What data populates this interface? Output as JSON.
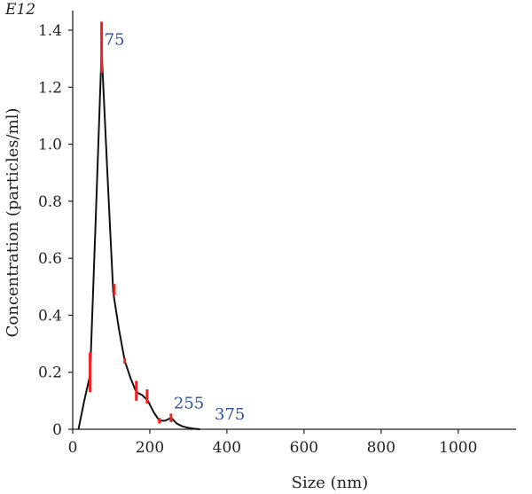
{
  "chart_data": {
    "type": "line",
    "title": "",
    "xlabel": "Size (nm)",
    "ylabel": "Concentration (particles/ml)",
    "y_multiplier_label": "E12",
    "xlim": [
      0,
      1150
    ],
    "ylim": [
      0,
      1.45
    ],
    "xticks": [
      0,
      200,
      400,
      600,
      800,
      1000
    ],
    "yticks": [
      0,
      0.2,
      0.4,
      0.6,
      0.8,
      1.0,
      1.2,
      1.4
    ],
    "ytick_labels": [
      "0",
      "0.2",
      "0.4",
      "0.6",
      "0.8",
      "1.0",
      "1.2",
      "1.4"
    ],
    "grid": false,
    "series": [
      {
        "color": "#111111",
        "x": [
          15,
          30,
          45,
          60,
          75,
          90,
          105,
          120,
          135,
          150,
          165,
          180,
          195,
          210,
          225,
          240,
          255,
          270,
          285,
          300,
          315,
          330
        ],
        "y": [
          0,
          0.1,
          0.19,
          0.75,
          1.33,
          0.9,
          0.48,
          0.35,
          0.24,
          0.18,
          0.13,
          0.12,
          0.1,
          0.06,
          0.03,
          0.03,
          0.04,
          0.02,
          0.01,
          0.005,
          0.002,
          0
        ]
      }
    ],
    "error_bars": {
      "color": "#ee2222",
      "items": [
        {
          "x": 45,
          "low": 0.13,
          "high": 0.27
        },
        {
          "x": 75,
          "low": 1.25,
          "high": 1.43
        },
        {
          "x": 108,
          "low": 0.47,
          "high": 0.51
        },
        {
          "x": 135,
          "low": 0.23,
          "high": 0.25
        },
        {
          "x": 165,
          "low": 0.1,
          "high": 0.17
        },
        {
          "x": 193,
          "low": 0.09,
          "high": 0.14
        },
        {
          "x": 225,
          "low": 0.02,
          "high": 0.04
        },
        {
          "x": 255,
          "low": 0.025,
          "high": 0.055
        }
      ]
    },
    "annotations": [
      {
        "text": "75",
        "x": 82,
        "y": 1.33
      },
      {
        "text": "255",
        "x": 262,
        "y": 0.055
      },
      {
        "text": "375",
        "x": 368,
        "y": 0.015
      }
    ]
  }
}
